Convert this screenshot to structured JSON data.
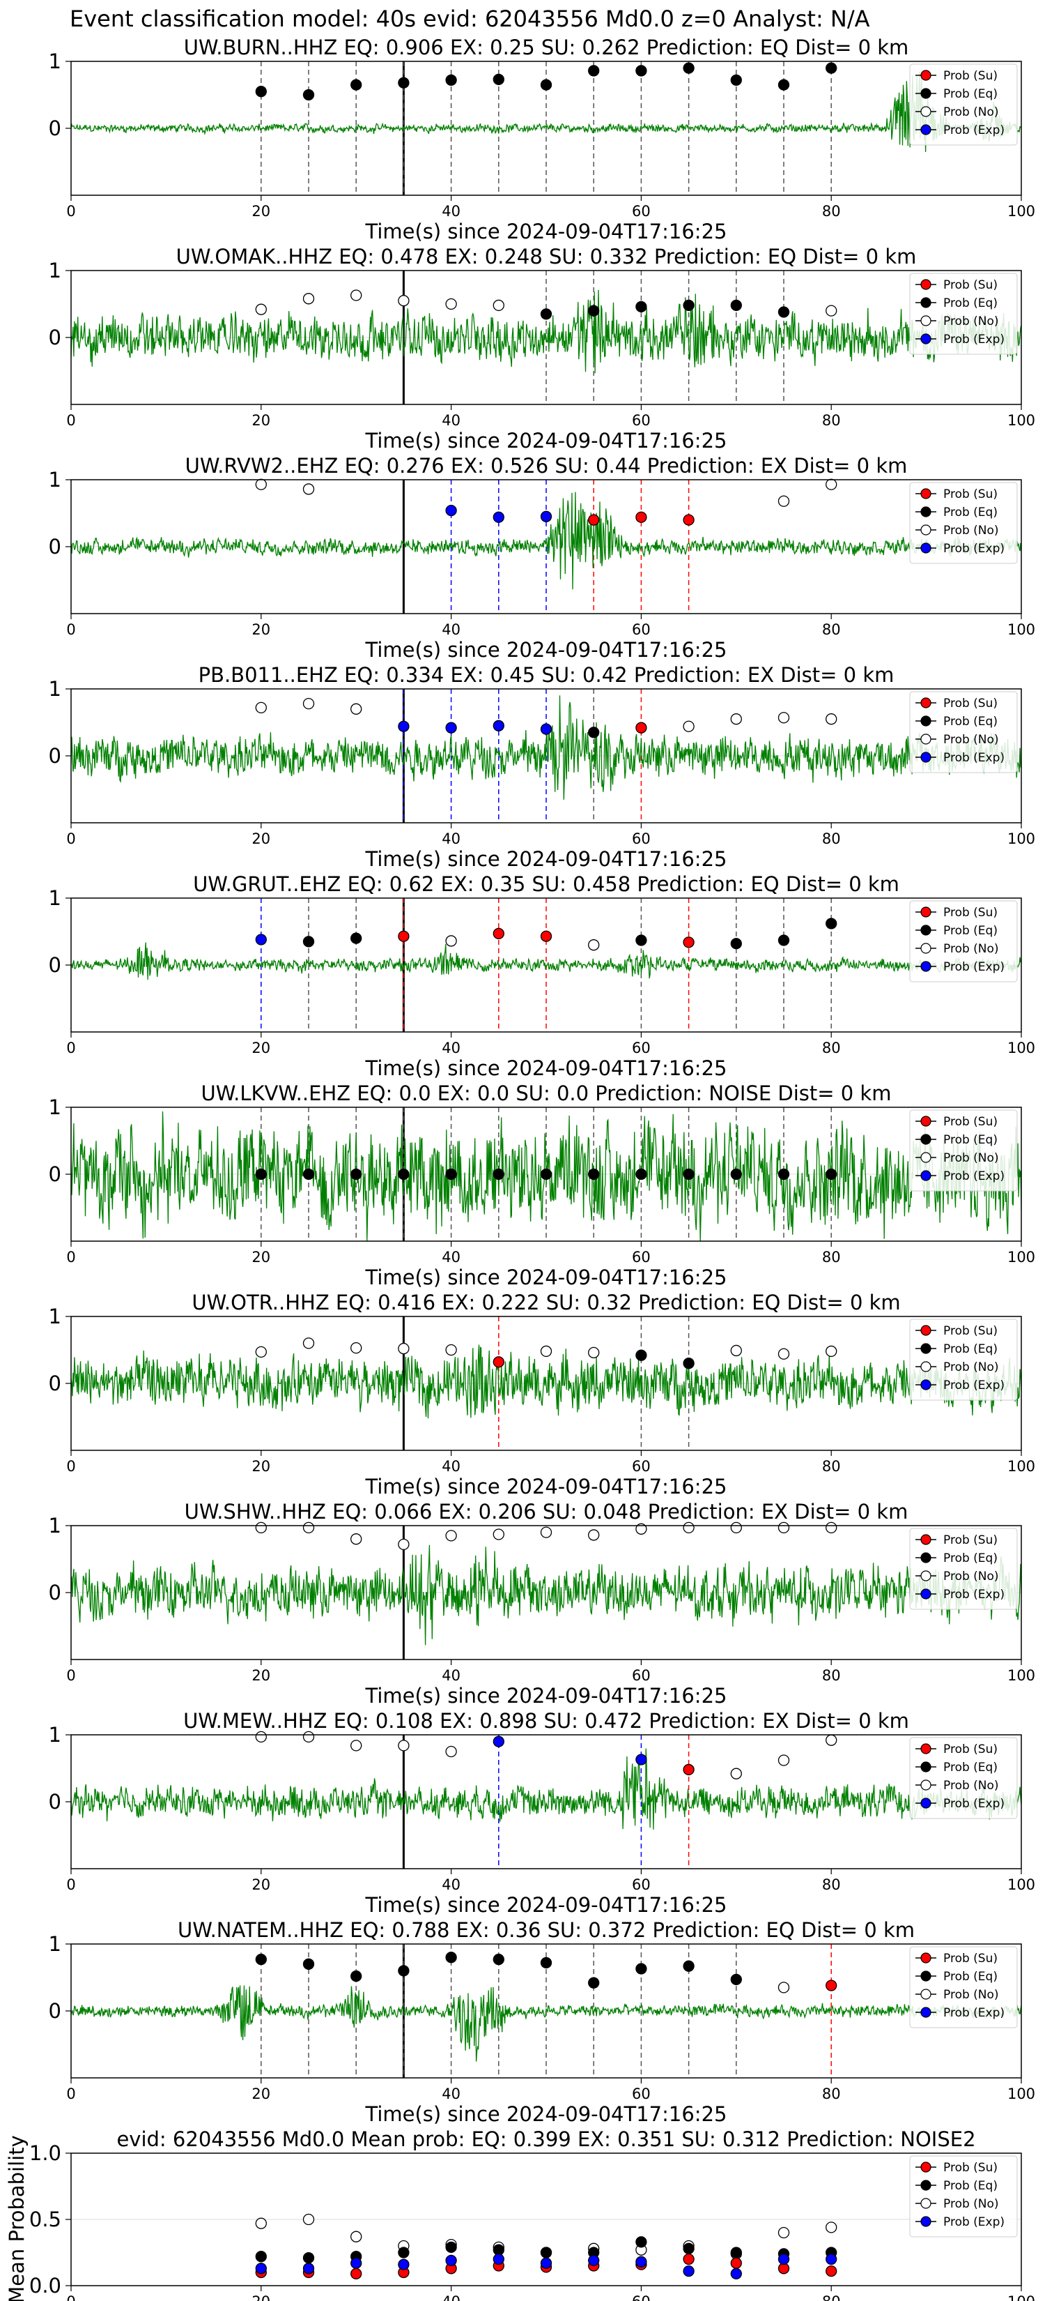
{
  "suptitle": "Event classification model: 40s evid: 62043556 Md0.0 z=0 Analyst: N/A",
  "legend_labels": [
    "Prob (Su)",
    "Prob (Eq)",
    "Prob (No)",
    "Prob (Exp)"
  ],
  "colors": {
    "su": "#ff0000",
    "eq": "#000000",
    "no": "#ffffff",
    "exp": "#0000ff",
    "trace": "#008000",
    "event_line": "#000000"
  },
  "x_ticks": [
    0,
    20,
    40,
    60,
    80,
    100
  ],
  "event_time": 35,
  "chart_data": [
    {
      "type": "scatter",
      "title": "UW.BURN..HHZ   EQ: 0.906  EX: 0.25  SU: 0.262   Prediction: EQ    Dist= 0 km",
      "xlabel": "Time(s) since 2024-09-04T17:16:25",
      "xlim": [
        0,
        100
      ],
      "ylim": [
        -1,
        1
      ],
      "y_ticks": [
        0,
        1
      ],
      "amp": 0.08,
      "spikes": [
        [
          88,
          0.9
        ],
        [
          90,
          0.7
        ],
        [
          97,
          0.4
        ]
      ],
      "x": [
        20,
        25,
        30,
        35,
        40,
        45,
        50,
        55,
        60,
        65,
        70,
        75,
        80
      ],
      "probs": [
        0.55,
        0.5,
        0.65,
        0.68,
        0.72,
        0.73,
        0.65,
        0.86,
        0.86,
        0.9,
        0.72,
        0.65,
        0.9
      ],
      "cls": [
        "eq",
        "eq",
        "eq",
        "eq",
        "eq",
        "eq",
        "eq",
        "eq",
        "eq",
        "eq",
        "eq",
        "eq",
        "eq"
      ]
    },
    {
      "type": "scatter",
      "title": "UW.OMAK..HHZ   EQ: 0.478  EX: 0.248  SU: 0.332   Prediction: EQ    Dist= 0 km",
      "xlabel": "Time(s) since 2024-09-04T17:16:25",
      "xlim": [
        0,
        100
      ],
      "ylim": [
        -1,
        1
      ],
      "y_ticks": [
        0,
        1
      ],
      "amp": 0.45,
      "spikes": [
        [
          55,
          0.9
        ],
        [
          66,
          0.85
        ]
      ],
      "x": [
        20,
        25,
        30,
        35,
        40,
        45,
        50,
        55,
        60,
        65,
        70,
        75,
        80
      ],
      "probs": [
        0.42,
        0.58,
        0.63,
        0.55,
        0.5,
        0.48,
        0.35,
        0.4,
        0.46,
        0.48,
        0.48,
        0.38,
        0.4
      ],
      "cls": [
        "no",
        "no",
        "no",
        "no",
        "no",
        "no",
        "eq",
        "eq",
        "eq",
        "eq",
        "eq",
        "eq",
        "no"
      ]
    },
    {
      "type": "scatter",
      "title": "UW.RVW2..EHZ   EQ: 0.276  EX: 0.526  SU: 0.44   Prediction: EX    Dist= 0 km",
      "xlabel": "Time(s) since 2024-09-04T17:16:25",
      "xlim": [
        0,
        100
      ],
      "ylim": [
        -1,
        1
      ],
      "y_ticks": [
        0,
        1
      ],
      "amp": 0.15,
      "spikes": [
        [
          52,
          0.9
        ],
        [
          54,
          0.8
        ],
        [
          56,
          0.6
        ]
      ],
      "x": [
        20,
        25,
        40,
        45,
        50,
        55,
        60,
        65,
        75,
        80
      ],
      "probs": [
        0.93,
        0.86,
        0.54,
        0.44,
        0.45,
        0.4,
        0.44,
        0.4,
        0.68,
        0.93
      ],
      "cls": [
        "no",
        "no",
        "exp",
        "exp",
        "exp",
        "su",
        "su",
        "su",
        "no",
        "no"
      ]
    },
    {
      "type": "scatter",
      "title": "PB.B011..EHZ   EQ: 0.334  EX: 0.45  SU: 0.42   Prediction: EX    Dist= 0 km",
      "xlabel": "Time(s) since 2024-09-04T17:16:25",
      "xlim": [
        0,
        100
      ],
      "ylim": [
        -1,
        1
      ],
      "y_ticks": [
        0,
        1
      ],
      "amp": 0.4,
      "spikes": [
        [
          52,
          0.95
        ],
        [
          56,
          0.7
        ]
      ],
      "x": [
        20,
        25,
        30,
        35,
        40,
        45,
        50,
        55,
        60,
        65,
        70,
        75,
        80
      ],
      "probs": [
        0.72,
        0.78,
        0.7,
        0.44,
        0.42,
        0.45,
        0.4,
        0.35,
        0.42,
        0.44,
        0.55,
        0.57,
        0.55
      ],
      "cls": [
        "no",
        "no",
        "no",
        "exp",
        "exp",
        "exp",
        "exp",
        "eq",
        "su",
        "no",
        "no",
        "no",
        "no"
      ]
    },
    {
      "type": "scatter",
      "title": "UW.GRUT..EHZ   EQ: 0.62  EX: 0.35  SU: 0.458   Prediction: EQ    Dist= 0 km",
      "xlabel": "Time(s) since 2024-09-04T17:16:25",
      "xlim": [
        0,
        100
      ],
      "ylim": [
        -1,
        1
      ],
      "y_ticks": [
        0,
        1
      ],
      "amp": 0.12,
      "spikes": [
        [
          8,
          0.4
        ],
        [
          40,
          0.3
        ],
        [
          60,
          0.3
        ]
      ],
      "x": [
        20,
        25,
        30,
        35,
        40,
        45,
        50,
        55,
        60,
        65,
        70,
        75,
        80
      ],
      "probs": [
        0.38,
        0.35,
        0.4,
        0.43,
        0.36,
        0.47,
        0.43,
        0.3,
        0.37,
        0.34,
        0.32,
        0.37,
        0.62
      ],
      "cls": [
        "exp",
        "eq",
        "eq",
        "su",
        "no",
        "su",
        "su",
        "no",
        "eq",
        "su",
        "eq",
        "eq",
        "eq"
      ]
    },
    {
      "type": "scatter",
      "title": "UW.LKVW..EHZ   EQ: 0.0  EX: 0.0  SU: 0.0   Prediction: NOISE    Dist= 0 km",
      "xlabel": "Time(s) since 2024-09-04T17:16:25",
      "xlim": [
        0,
        100
      ],
      "ylim": [
        -1,
        1
      ],
      "y_ticks": [
        0,
        1
      ],
      "amp": 0.95,
      "spikes": [],
      "x": [
        20,
        25,
        30,
        35,
        40,
        45,
        50,
        55,
        60,
        65,
        70,
        75,
        80
      ],
      "probs": [
        0,
        0,
        0,
        0,
        0,
        0,
        0,
        0,
        0,
        0,
        0,
        0,
        0
      ],
      "cls": [
        "eq",
        "eq",
        "eq",
        "eq",
        "eq",
        "eq",
        "eq",
        "eq",
        "eq",
        "eq",
        "eq",
        "eq",
        "eq"
      ]
    },
    {
      "type": "scatter",
      "title": "UW.OTR..HHZ   EQ: 0.416  EX: 0.222  SU: 0.32   Prediction: EQ    Dist= 0 km",
      "xlabel": "Time(s) since 2024-09-04T17:16:25",
      "xlim": [
        0,
        100
      ],
      "ylim": [
        -1,
        1
      ],
      "y_ticks": [
        0,
        1
      ],
      "amp": 0.5,
      "spikes": [
        [
          43,
          0.9
        ]
      ],
      "x": [
        20,
        25,
        30,
        35,
        40,
        45,
        50,
        55,
        60,
        65,
        70,
        75,
        80
      ],
      "probs": [
        0.47,
        0.6,
        0.53,
        0.52,
        0.5,
        0.32,
        0.48,
        0.46,
        0.42,
        0.3,
        0.49,
        0.44,
        0.48
      ],
      "cls": [
        "no",
        "no",
        "no",
        "no",
        "no",
        "su",
        "no",
        "no",
        "eq",
        "eq",
        "no",
        "no",
        "no"
      ]
    },
    {
      "type": "scatter",
      "title": "UW.SHW..HHZ   EQ: 0.066  EX: 0.206  SU: 0.048   Prediction: EX    Dist= 0 km",
      "xlabel": "Time(s) since 2024-09-04T17:16:25",
      "xlim": [
        0,
        100
      ],
      "ylim": [
        -1,
        1
      ],
      "y_ticks": [
        0,
        1
      ],
      "amp": 0.5,
      "spikes": [
        [
          37,
          0.9
        ],
        [
          44,
          0.8
        ]
      ],
      "x": [
        20,
        25,
        30,
        35,
        40,
        45,
        50,
        55,
        60,
        65,
        70,
        75,
        80
      ],
      "probs": [
        0.97,
        0.97,
        0.8,
        0.72,
        0.85,
        0.87,
        0.9,
        0.86,
        0.95,
        0.97,
        0.97,
        0.97,
        0.97
      ],
      "cls": [
        "no",
        "no",
        "no",
        "no",
        "no",
        "no",
        "no",
        "no",
        "no",
        "no",
        "no",
        "no",
        "no"
      ]
    },
    {
      "type": "scatter",
      "title": "UW.MEW..HHZ   EQ: 0.108  EX: 0.898  SU: 0.472   Prediction: EX    Dist= 0 km",
      "xlabel": "Time(s) since 2024-09-04T17:16:25",
      "xlim": [
        0,
        100
      ],
      "ylim": [
        -1,
        1
      ],
      "y_ticks": [
        0,
        1
      ],
      "amp": 0.3,
      "spikes": [
        [
          59,
          0.7
        ],
        [
          61,
          0.6
        ]
      ],
      "x": [
        20,
        25,
        30,
        35,
        40,
        45,
        60,
        65,
        70,
        75,
        80
      ],
      "probs": [
        0.97,
        0.97,
        0.84,
        0.84,
        0.75,
        0.9,
        0.63,
        0.48,
        0.42,
        0.62,
        0.92
      ],
      "cls": [
        "no",
        "no",
        "no",
        "no",
        "no",
        "exp",
        "exp",
        "su",
        "no",
        "no",
        "no"
      ]
    },
    {
      "type": "scatter",
      "title": "UW.NATEM..HHZ   EQ: 0.788  EX: 0.36  SU: 0.372   Prediction: EQ    Dist= 0 km",
      "xlabel": "Time(s) since 2024-09-04T17:16:25",
      "xlim": [
        0,
        100
      ],
      "ylim": [
        -1,
        1
      ],
      "y_ticks": [
        0,
        1
      ],
      "amp": 0.12,
      "spikes": [
        [
          18,
          0.7
        ],
        [
          42,
          -0.9
        ],
        [
          44,
          -0.6
        ],
        [
          30,
          0.4
        ]
      ],
      "x": [
        20,
        25,
        30,
        35,
        40,
        45,
        50,
        55,
        60,
        65,
        70,
        75,
        80
      ],
      "probs": [
        0.77,
        0.7,
        0.52,
        0.6,
        0.8,
        0.77,
        0.72,
        0.42,
        0.63,
        0.67,
        0.47,
        0.35,
        0.38
      ],
      "cls": [
        "eq",
        "eq",
        "eq",
        "eq",
        "eq",
        "eq",
        "eq",
        "eq",
        "eq",
        "eq",
        "eq",
        "no",
        "su"
      ]
    },
    {
      "type": "scatter",
      "title": "evid: 62043556  Md0.0    Mean prob:    EQ: 0.399  EX: 0.351  SU: 0.312    Prediction: NOISE2",
      "xlabel": "",
      "ylabel": "Mean Probability",
      "xlim": [
        0,
        100
      ],
      "ylim": [
        0,
        1
      ],
      "y_ticks": [
        0,
        0.5,
        1
      ],
      "x": [
        20,
        25,
        30,
        35,
        40,
        45,
        50,
        55,
        60,
        65,
        70,
        75,
        80
      ],
      "series": [
        {
          "name": "Prob (No)",
          "values": [
            0.47,
            0.5,
            0.37,
            0.3,
            0.31,
            0.29,
            0.25,
            0.28,
            0.27,
            0.3,
            0.24,
            0.4,
            0.44
          ]
        },
        {
          "name": "Prob (Eq)",
          "values": [
            0.22,
            0.21,
            0.22,
            0.25,
            0.29,
            0.27,
            0.25,
            0.25,
            0.33,
            0.28,
            0.25,
            0.24,
            0.25
          ]
        },
        {
          "name": "Prob (Su)",
          "values": [
            0.1,
            0.1,
            0.09,
            0.1,
            0.13,
            0.15,
            0.14,
            0.15,
            0.16,
            0.2,
            0.17,
            0.13,
            0.11
          ]
        },
        {
          "name": "Prob (Exp)",
          "values": [
            0.13,
            0.13,
            0.17,
            0.16,
            0.19,
            0.2,
            0.17,
            0.19,
            0.18,
            0.11,
            0.09,
            0.2,
            0.2
          ]
        }
      ]
    }
  ]
}
